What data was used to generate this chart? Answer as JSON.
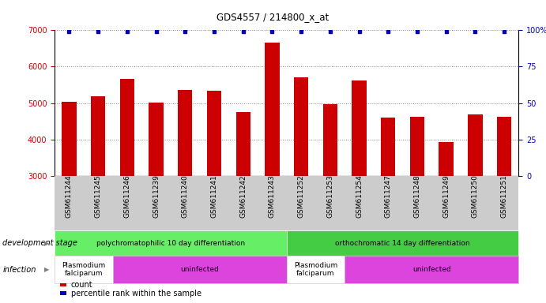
{
  "title": "GDS4557 / 214800_x_at",
  "samples": [
    "GSM611244",
    "GSM611245",
    "GSM611246",
    "GSM611239",
    "GSM611240",
    "GSM611241",
    "GSM611242",
    "GSM611243",
    "GSM611252",
    "GSM611253",
    "GSM611254",
    "GSM611247",
    "GSM611248",
    "GSM611249",
    "GSM611250",
    "GSM611251"
  ],
  "counts": [
    5030,
    5190,
    5660,
    5020,
    5370,
    5340,
    4750,
    6670,
    5700,
    4960,
    5620,
    4590,
    4630,
    3930,
    4680,
    4620
  ],
  "bar_color": "#cc0000",
  "dot_color": "#0000bb",
  "ylim_left": [
    3000,
    7000
  ],
  "ylim_right": [
    0,
    100
  ],
  "yticks_left": [
    3000,
    4000,
    5000,
    6000,
    7000
  ],
  "yticks_right": [
    0,
    25,
    50,
    75,
    100
  ],
  "right_tick_labels": [
    "0",
    "25",
    "50",
    "75",
    "100%"
  ],
  "gridlines": [
    4000,
    5000,
    6000,
    7000
  ],
  "background_color": "#ffffff",
  "dev_stage_groups": [
    {
      "label": "polychromatophilic 10 day differentiation",
      "start": 0,
      "end": 7,
      "color": "#66ee66"
    },
    {
      "label": "orthochromatic 14 day differentiation",
      "start": 8,
      "end": 15,
      "color": "#44cc44"
    }
  ],
  "infection_groups": [
    {
      "label": "Plasmodium\nfalciparum",
      "start": 0,
      "end": 1,
      "color": "#ffffff"
    },
    {
      "label": "uninfected",
      "start": 2,
      "end": 7,
      "color": "#dd44dd"
    },
    {
      "label": "Plasmodium\nfalciparum",
      "start": 8,
      "end": 9,
      "color": "#ffffff"
    },
    {
      "label": "uninfected",
      "start": 10,
      "end": 15,
      "color": "#dd44dd"
    }
  ],
  "legend_items": [
    {
      "color": "#cc0000",
      "label": "count"
    },
    {
      "color": "#0000bb",
      "label": "percentile rank within the sample"
    }
  ],
  "tick_bg_color": "#cccccc",
  "bar_width": 0.5,
  "font_size": 6.5,
  "dev_stage_label": "development stage",
  "infection_label": "infection"
}
